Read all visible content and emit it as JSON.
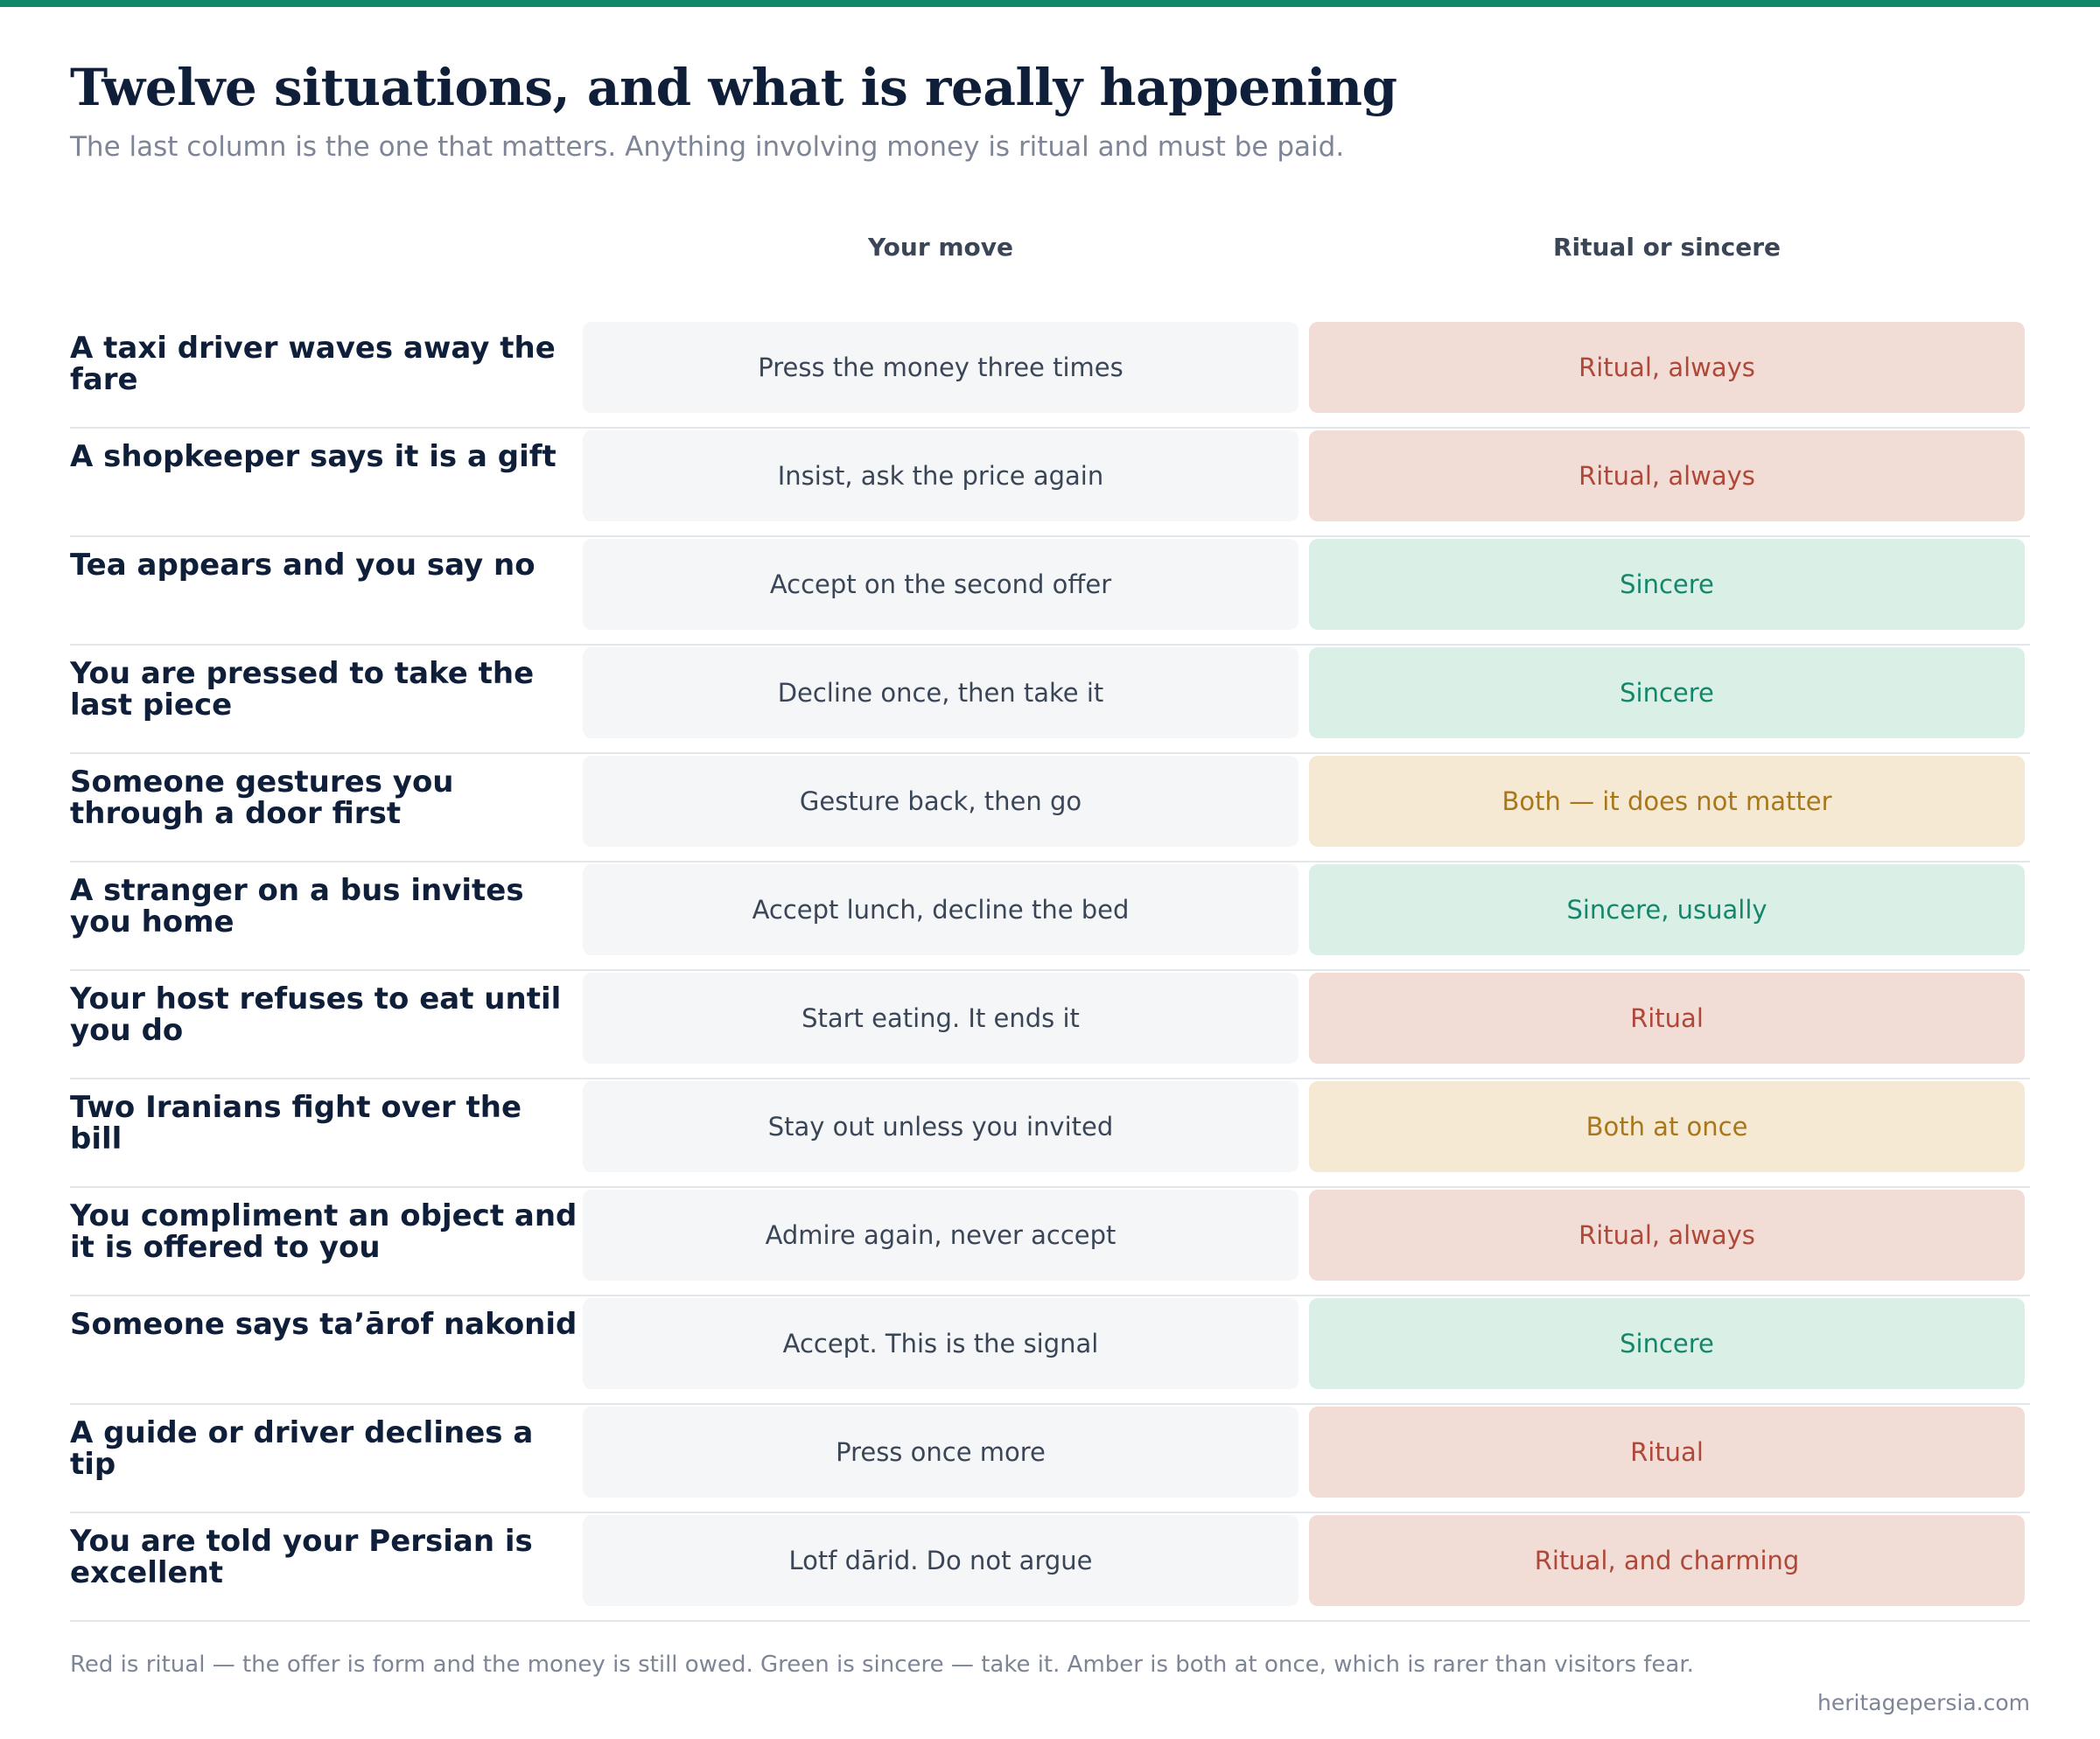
{
  "header": {
    "title": "Twelve situations, and what is really happening",
    "subtitle": "The last column is the one that matters. Anything involving money is ritual and must be paid."
  },
  "columns": {
    "move": "Your move",
    "verdict": "Ritual or sincere"
  },
  "colors": {
    "accent": "#13876a",
    "ritual": "#b0483a",
    "sincere": "#14876a",
    "both": "#a8771a"
  },
  "rows": [
    {
      "situation": "A taxi driver waves away the fare",
      "move": "Press the money three times",
      "verdict": "Ritual, always",
      "kind": "ritual"
    },
    {
      "situation": "A shopkeeper says it is a gift",
      "move": "Insist, ask the price again",
      "verdict": "Ritual, always",
      "kind": "ritual"
    },
    {
      "situation": "Tea appears and you say no",
      "move": "Accept on the second offer",
      "verdict": "Sincere",
      "kind": "sincere"
    },
    {
      "situation": "You are pressed to take the last piece",
      "move": "Decline once, then take it",
      "verdict": "Sincere",
      "kind": "sincere"
    },
    {
      "situation": "Someone gestures you through a door first",
      "move": "Gesture back, then go",
      "verdict": "Both — it does not matter",
      "kind": "both"
    },
    {
      "situation": "A stranger on a bus invites you home",
      "move": "Accept lunch, decline the bed",
      "verdict": "Sincere, usually",
      "kind": "sincere"
    },
    {
      "situation": "Your host refuses to eat until you do",
      "move": "Start eating. It ends it",
      "verdict": "Ritual",
      "kind": "ritual"
    },
    {
      "situation": "Two Iranians fight over the bill",
      "move": "Stay out unless you invited",
      "verdict": "Both at once",
      "kind": "both"
    },
    {
      "situation": "You compliment an object and it is offered to you",
      "move": "Admire again, never accept",
      "verdict": "Ritual, always",
      "kind": "ritual"
    },
    {
      "situation": "Someone says ta’ārof nakonid",
      "move": "Accept. This is the signal",
      "verdict": "Sincere",
      "kind": "sincere"
    },
    {
      "situation": "A guide or driver declines a tip",
      "move": "Press once more",
      "verdict": "Ritual",
      "kind": "ritual"
    },
    {
      "situation": "You are told your Persian is excellent",
      "move": "Lotf dārid. Do not argue",
      "verdict": "Ritual, and charming",
      "kind": "ritual"
    }
  ],
  "footer": {
    "note": "Red is ritual — the offer is form and the money is still owed. Green is sincere — take it. Amber is both at once, which is rarer than visitors fear.",
    "source": "heritagepersia.com"
  }
}
